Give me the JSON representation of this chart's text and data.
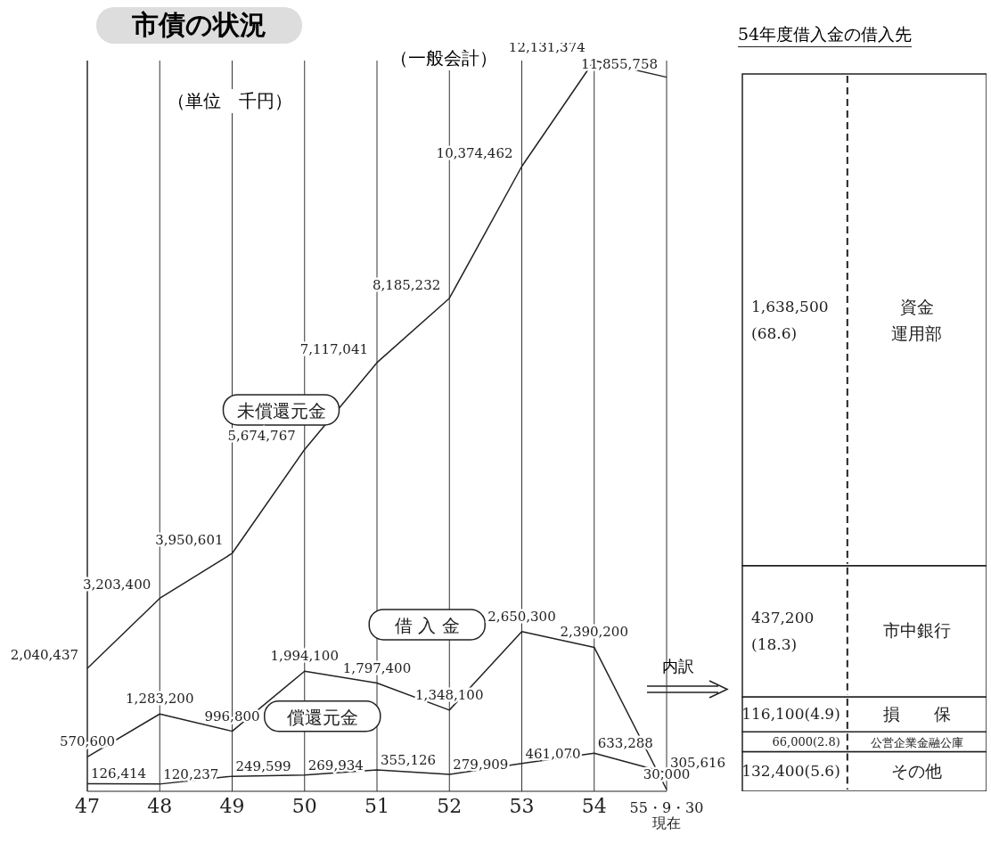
{
  "chart_data": [
    {
      "type": "line",
      "title": "市債の状況",
      "annotations": [
        "（一般会計）",
        "（単位　千円）",
        "内訳"
      ],
      "categories": [
        "47",
        "48",
        "49",
        "50",
        "51",
        "52",
        "53",
        "54",
        "55・9・30 現在"
      ],
      "grid": "x",
      "legend": false,
      "marker": "none",
      "line_style": "solid",
      "series": [
        {
          "name": "未償還元金",
          "color": "#222222",
          "values": [
            2040437,
            3203400,
            3950601,
            5674767,
            7117041,
            8185232,
            10374462,
            12131374,
            11855758
          ],
          "value_labels": [
            "2,040,437",
            "3,203,400",
            "3,950,601",
            "5,674,767",
            "7,117,041",
            "8,185,232",
            "10,374,462",
            "12,131,374",
            "11,855,758"
          ]
        },
        {
          "name": "借 入 金",
          "color": "#222222",
          "values": [
            570600,
            1283200,
            996800,
            1994100,
            1797400,
            1348100,
            2650300,
            2390200,
            30000
          ],
          "value_labels": [
            "570,600",
            "1,283,200",
            "996,800",
            "1,994,100",
            "1,797,400",
            "1,348,100",
            "2,650,300",
            "2,390,200",
            "30,000"
          ]
        },
        {
          "name": "償還元金",
          "color": "#222222",
          "values": [
            126414,
            120237,
            249599,
            269934,
            355126,
            279909,
            461070,
            633288,
            305616
          ],
          "value_labels": [
            "126,414",
            "120,237",
            "249,599",
            "269,934",
            "355,126",
            "279,909",
            "461,070",
            "633,288",
            "305,616"
          ]
        }
      ]
    },
    {
      "type": "bar",
      "title": "54年度借入金の借入先",
      "stacked": true,
      "categories": [
        null
      ],
      "legend": "right",
      "series": [
        {
          "name": "その他",
          "color": "#ffffff",
          "values": [
            132400
          ],
          "value_labels": [
            "132,400(5.6)"
          ]
        },
        {
          "name": "公営企業金融公庫",
          "color": "#ffffff",
          "values": [
            66000
          ],
          "value_labels": [
            "66,000(2.8)"
          ]
        },
        {
          "name": "損　　保",
          "color": "#ffffff",
          "values": [
            116100
          ],
          "value_labels": [
            "116,100(4.9)"
          ]
        },
        {
          "name": "市中銀行",
          "color": "#ffffff",
          "values": [
            437200
          ],
          "value_labels": [
            "437,200 (18.3)"
          ]
        },
        {
          "name": "資金運用部",
          "color": "#ffffff",
          "values": [
            1638500
          ],
          "value_labels": [
            "1,638,500 (68.6)"
          ]
        }
      ]
    }
  ]
}
